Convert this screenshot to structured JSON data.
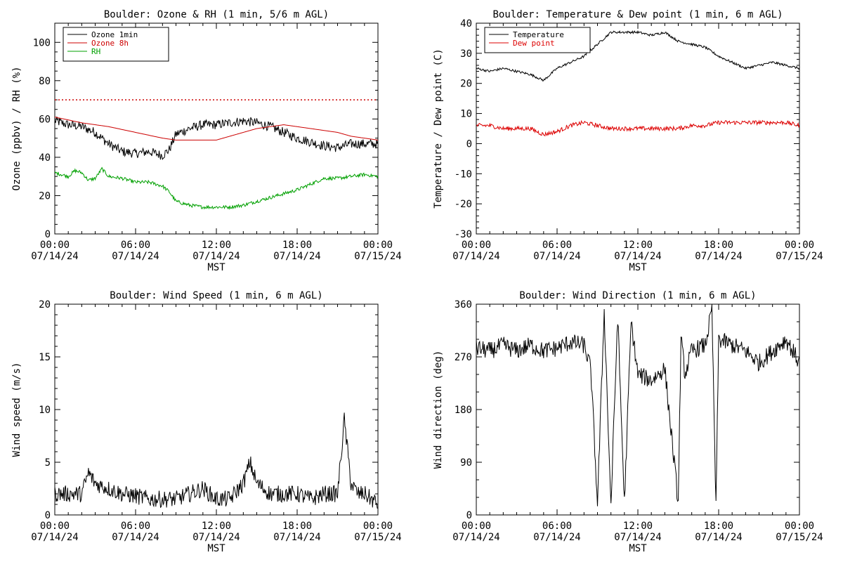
{
  "chart_data": [
    {
      "type": "line",
      "title": "Boulder: Ozone & RH (1 min, 5/6 m AGL)",
      "xlabel": "MST",
      "ylabel": "Ozone (ppbv) / RH (%)",
      "xlim": [
        0,
        24
      ],
      "ylim": [
        0,
        110
      ],
      "y_ticks": [
        0,
        20,
        40,
        60,
        80,
        100
      ],
      "x_tick_labels": [
        {
          "time": "00:00",
          "date": "07/14/24"
        },
        {
          "time": "06:00",
          "date": "07/14/24"
        },
        {
          "time": "12:00",
          "date": "07/14/24"
        },
        {
          "time": "18:00",
          "date": "07/14/24"
        },
        {
          "time": "00:00",
          "date": "07/15/24"
        }
      ],
      "legend": {
        "position": "top-left"
      },
      "reference_lines": [
        {
          "y": 70,
          "color": "#cc0000",
          "style": "dotted"
        }
      ],
      "series": [
        {
          "name": "Ozone 1min",
          "color": "#000000",
          "noise": 2.5,
          "x": [
            0,
            1,
            2,
            3,
            4,
            5,
            6,
            7,
            8,
            8.5,
            9,
            10,
            11,
            12,
            13,
            14,
            15,
            16,
            17,
            18,
            19,
            20,
            21,
            22,
            23,
            24
          ],
          "y": [
            59,
            57,
            56,
            53,
            47,
            43,
            42,
            43,
            41,
            44,
            52,
            55,
            57,
            57,
            58,
            59,
            58,
            56,
            53,
            50,
            48,
            46,
            45,
            47,
            47,
            47
          ]
        },
        {
          "name": "Ozone 8h",
          "color": "#cc0000",
          "noise": 0,
          "x": [
            0,
            2,
            4,
            6,
            8,
            9,
            10,
            11,
            12,
            13,
            14,
            15,
            16,
            17,
            18,
            19,
            20,
            21,
            22,
            23,
            24
          ],
          "y": [
            61,
            58,
            56,
            53,
            50,
            49,
            49,
            49,
            49,
            51,
            53,
            55,
            56,
            57,
            56,
            55,
            54,
            53,
            51,
            50,
            49
          ]
        },
        {
          "name": "RH",
          "color": "#00a000",
          "noise": 0.9,
          "x": [
            0,
            1,
            1.5,
            2,
            2.5,
            3,
            3.5,
            4,
            5,
            6,
            7,
            8,
            8.5,
            9,
            10,
            11,
            12,
            13,
            14,
            15,
            16,
            17,
            18,
            19,
            20,
            21,
            22,
            23,
            24
          ],
          "y": [
            32,
            30,
            33,
            32,
            28,
            29,
            34,
            30,
            29,
            27,
            27,
            25,
            22,
            17,
            15,
            14,
            14,
            14,
            15,
            17,
            19,
            21,
            23,
            26,
            29,
            29,
            30,
            31,
            30
          ]
        }
      ]
    },
    {
      "type": "line",
      "title": "Boulder: Temperature & Dew point (1 min, 6 m AGL)",
      "xlabel": "MST",
      "ylabel": "Temperature / Dew point (C)",
      "xlim": [
        0,
        24
      ],
      "ylim": [
        -30,
        40
      ],
      "y_ticks": [
        -30,
        -20,
        -10,
        0,
        10,
        20,
        30,
        40
      ],
      "x_tick_labels": [
        {
          "time": "00:00",
          "date": "07/14/24"
        },
        {
          "time": "06:00",
          "date": "07/14/24"
        },
        {
          "time": "12:00",
          "date": "07/14/24"
        },
        {
          "time": "18:00",
          "date": "07/14/24"
        },
        {
          "time": "00:00",
          "date": "07/15/24"
        }
      ],
      "legend": {
        "position": "top-left"
      },
      "series": [
        {
          "name": "Temperature",
          "color": "#000000",
          "noise": 0.4,
          "x": [
            0,
            1,
            2,
            3,
            4,
            5,
            6,
            7,
            8,
            9,
            10,
            11,
            12,
            13,
            14,
            15,
            16,
            17,
            18,
            19,
            20,
            21,
            22,
            23,
            24
          ],
          "y": [
            25,
            24,
            25,
            24,
            23,
            21,
            25,
            27,
            29,
            33,
            37,
            37,
            37,
            36,
            37,
            34,
            33,
            32,
            29,
            27,
            25,
            26,
            27,
            26,
            25
          ]
        },
        {
          "name": "Dew point",
          "color": "#dd0000",
          "noise": 0.7,
          "x": [
            0,
            1,
            2,
            3,
            4,
            5,
            6,
            7,
            8,
            9,
            10,
            11,
            12,
            13,
            14,
            15,
            16,
            17,
            18,
            19,
            20,
            21,
            22,
            23,
            24
          ],
          "y": [
            6,
            6,
            5,
            5,
            5,
            3,
            4,
            6,
            7,
            6,
            5,
            5,
            5,
            5,
            5,
            5,
            6,
            6,
            7,
            7,
            7,
            7,
            7,
            7,
            6
          ]
        }
      ]
    },
    {
      "type": "line",
      "title": "Boulder: Wind Speed (1 min, 6 m AGL)",
      "xlabel": "MST",
      "ylabel": "Wind speed (m/s)",
      "xlim": [
        0,
        24
      ],
      "ylim": [
        0,
        20
      ],
      "y_ticks": [
        0,
        5,
        10,
        15,
        20
      ],
      "x_tick_labels": [
        {
          "time": "00:00",
          "date": "07/14/24"
        },
        {
          "time": "06:00",
          "date": "07/14/24"
        },
        {
          "time": "12:00",
          "date": "07/14/24"
        },
        {
          "time": "18:00",
          "date": "07/14/24"
        },
        {
          "time": "00:00",
          "date": "07/15/24"
        }
      ],
      "series": [
        {
          "name": "",
          "color": "#000000",
          "noise": 0.8,
          "x": [
            0,
            1,
            2,
            2.5,
            3,
            4,
            5,
            6,
            7,
            8,
            9,
            10,
            11,
            12,
            13,
            14,
            14.5,
            15,
            16,
            17,
            18,
            19,
            20,
            21,
            21.5,
            22,
            22.5,
            23,
            24
          ],
          "y": [
            2,
            2,
            2,
            4,
            3,
            2.5,
            2,
            1.8,
            1.5,
            1.5,
            1.5,
            2,
            2.5,
            1.5,
            1.5,
            3,
            5,
            3,
            2,
            2,
            2,
            1.5,
            2,
            2,
            9,
            3,
            2,
            2,
            1
          ]
        }
      ]
    },
    {
      "type": "line",
      "title": "Boulder: Wind Direction (1 min, 6 m AGL)",
      "xlabel": "MST",
      "ylabel": "Wind direction (deg)",
      "xlim": [
        0,
        24
      ],
      "ylim": [
        0,
        360
      ],
      "y_ticks": [
        0,
        90,
        180,
        270,
        360
      ],
      "x_tick_labels": [
        {
          "time": "00:00",
          "date": "07/14/24"
        },
        {
          "time": "06:00",
          "date": "07/14/24"
        },
        {
          "time": "12:00",
          "date": "07/14/24"
        },
        {
          "time": "18:00",
          "date": "07/14/24"
        },
        {
          "time": "00:00",
          "date": "07/15/24"
        }
      ],
      "series": [
        {
          "name": "",
          "color": "#000000",
          "noise": 15,
          "x": [
            0,
            1,
            2,
            3,
            4,
            5,
            6,
            7,
            8,
            8.5,
            9,
            9.5,
            10,
            10.5,
            11,
            11.5,
            12,
            13,
            14,
            15,
            15.2,
            15.5,
            16,
            17,
            17.5,
            17.8,
            18,
            19,
            20,
            21,
            22,
            23,
            24
          ],
          "y": [
            285,
            280,
            290,
            280,
            290,
            280,
            285,
            295,
            290,
            250,
            20,
            350,
            15,
            340,
            20,
            330,
            240,
            230,
            250,
            20,
            300,
            240,
            280,
            290,
            350,
            10,
            300,
            290,
            280,
            260,
            280,
            300,
            260
          ]
        }
      ]
    }
  ]
}
